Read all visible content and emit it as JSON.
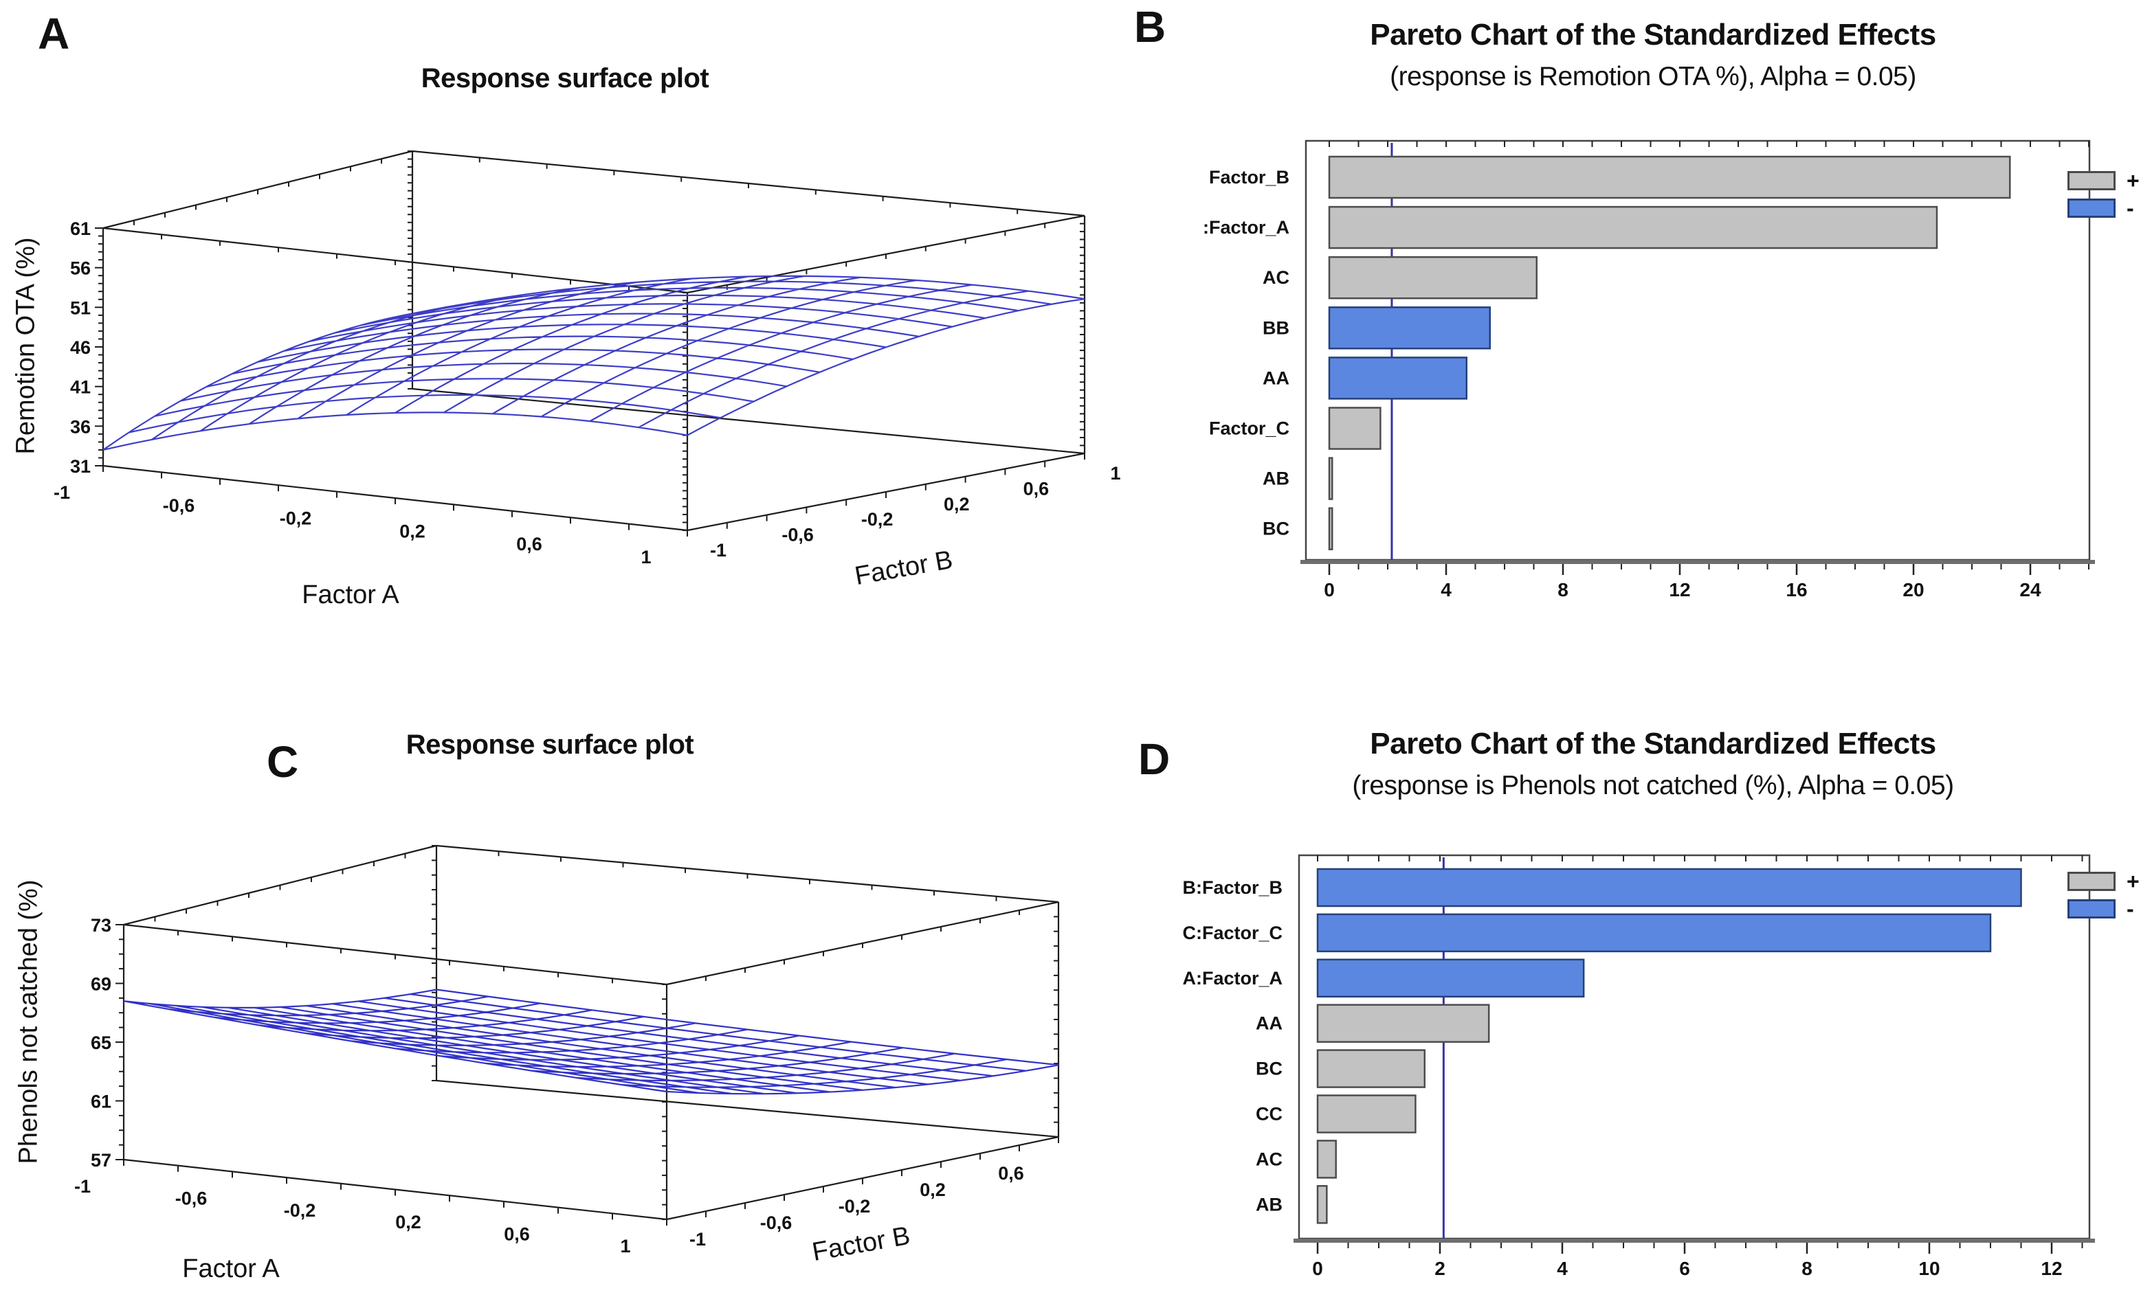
{
  "chart_data": [
    {
      "id": "A",
      "type": "surface3d",
      "panel_label": "A",
      "title": "Response surface plot",
      "z_label": "Remotion OTA (%)",
      "x_label": "Factor A",
      "y_label": "Factor B",
      "z_range": [
        31,
        61
      ],
      "z_ticks": [
        31,
        36,
        41,
        46,
        51,
        56,
        61
      ],
      "x_ticks": [
        "-1",
        "-0,6",
        "-0,2",
        "0,2",
        "0,6",
        "1"
      ],
      "y_ticks": [
        "-1",
        "-0,6",
        "-0,2",
        "0,2",
        "0,6",
        "1"
      ],
      "surface_coefficients": {
        "c": 48,
        "a": 5,
        "b": 3.75,
        "aa": -3.75,
        "bb": -2.5,
        "ab": 0
      },
      "corner_values": {
        "A-1_B-1": 33,
        "A1_B-1": 43,
        "A-1_B1": 40.5,
        "A1_B1": 50.5
      },
      "grid_divisions": 12,
      "mesh_color": "#3d3dc8",
      "box_color": "#1c1c1c"
    },
    {
      "id": "B",
      "type": "pareto",
      "panel_label": "B",
      "title": "Pareto Chart of the Standardized Effects",
      "subtitle": "(response is Remotion OTA %), Alpha = 0.05)",
      "categories": [
        "Factor_B",
        ":Factor_A",
        "AC",
        "BB",
        "AA",
        "Factor_C",
        "AB",
        "BC"
      ],
      "values": [
        23.3,
        20.8,
        7.1,
        5.5,
        4.7,
        1.75,
        0.1,
        0.1
      ],
      "signs": [
        "+",
        "+",
        "+",
        "-",
        "-",
        "+",
        "+",
        "+"
      ],
      "x_ticks": [
        0,
        4,
        8,
        12,
        16,
        20,
        24
      ],
      "x_max": 26,
      "minor_tick_step": 1,
      "reference_line": 2.14,
      "reference_line_color": "#3434aa",
      "bar_colors": {
        "plus_fill": "#c2c2c2",
        "plus_stroke": "#4d4d4d",
        "minus_fill": "#5b87e0",
        "minus_stroke": "#26417a"
      },
      "legend": {
        "plus_label": "+",
        "minus_label": "-",
        "plus_color": "#c2c2c2",
        "minus_color": "#5b87e0"
      }
    },
    {
      "id": "C",
      "type": "surface3d",
      "panel_label": "C",
      "title": "Response surface plot",
      "z_label": "Phenols not catched (%)",
      "x_label": "Factor A",
      "y_label": "Factor B",
      "z_range": [
        57,
        73
      ],
      "z_ticks": [
        57,
        61,
        65,
        69,
        73
      ],
      "x_ticks": [
        "-1",
        "-0,6",
        "-0,2",
        "0,2",
        "0,6",
        "1"
      ],
      "y_ticks": [
        "-1",
        "-0,6",
        "-0,2",
        "0,2",
        "0,6"
      ],
      "surface_coefficients": {
        "c": 63.7,
        "a": -0.85,
        "b": -2.1,
        "aa": 0.15,
        "bb": 0.8,
        "ab": 0.2
      },
      "corner_values": {
        "A-1_B-1": 67.7,
        "A1_B-1": 65.7,
        "A-1_B1": 63.2,
        "A1_B1": 61.9
      },
      "grid_divisions": 12,
      "mesh_color": "#3232c8",
      "box_color": "#1c1c1c"
    },
    {
      "id": "D",
      "type": "pareto",
      "panel_label": "D",
      "title": "Pareto Chart of the Standardized Effects",
      "subtitle": "(response is Phenols not catched (%), Alpha = 0.05)",
      "categories": [
        "B:Factor_B",
        "C:Factor_C",
        "A:Factor_A",
        "AA",
        "BC",
        "CC",
        "AC",
        "AB"
      ],
      "values": [
        11.5,
        11.0,
        4.35,
        2.8,
        1.75,
        1.6,
        0.3,
        0.15
      ],
      "signs": [
        "-",
        "-",
        "-",
        "+",
        "+",
        "+",
        "+",
        "+"
      ],
      "x_ticks": [
        0,
        2,
        4,
        6,
        8,
        10,
        12
      ],
      "x_max": 12.6,
      "minor_tick_step": 0.5,
      "reference_line": 2.06,
      "reference_line_color": "#3434aa",
      "bar_colors": {
        "plus_fill": "#c2c2c2",
        "plus_stroke": "#4d4d4d",
        "minus_fill": "#5b87e0",
        "minus_stroke": "#26417a"
      },
      "legend": {
        "plus_label": "+",
        "minus_label": "-",
        "plus_color": "#c2c2c2",
        "minus_color": "#5b87e0"
      }
    }
  ]
}
